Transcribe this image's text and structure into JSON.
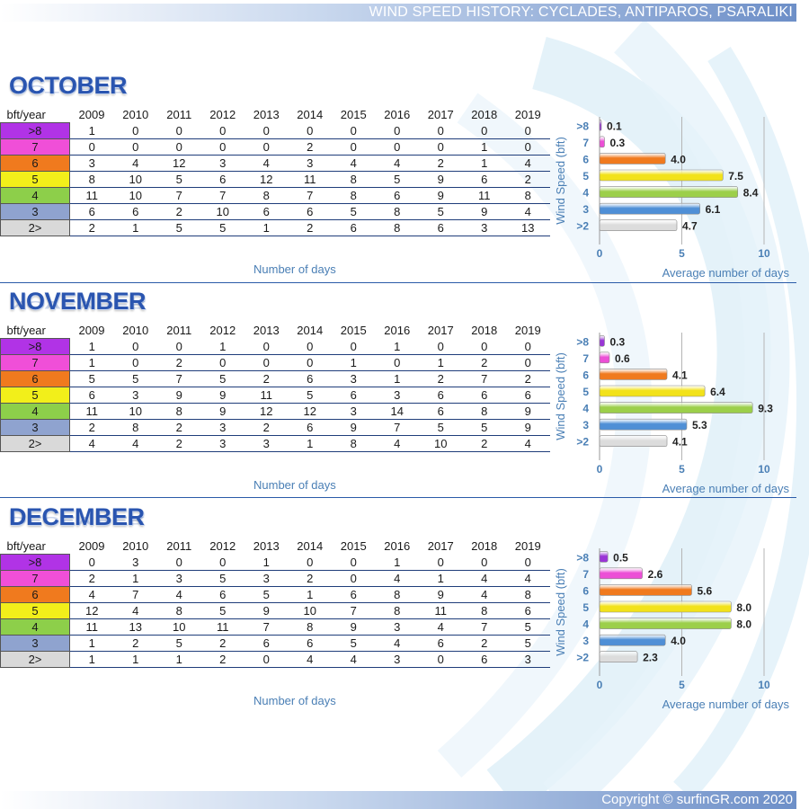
{
  "header": {
    "title": "WIND SPEED HISTORY: CYCLADES, ANTIPAROS, PSARALIKI"
  },
  "footer": {
    "copyright": "Copyright © surfinGR.com 2020"
  },
  "table_header": {
    "first": "bft/year",
    "years": [
      "2009",
      "2010",
      "2011",
      "2012",
      "2013",
      "2014",
      "2015",
      "2016",
      "2017",
      "2018",
      "2019"
    ]
  },
  "row_colors": [
    "#b133e6",
    "#f04fd8",
    "#f07a1e",
    "#f2ef1a",
    "#8dcf4a",
    "#8fa3cf",
    "#d9d9d9"
  ],
  "bar_colors": [
    "#9a35d6",
    "#ec4fd6",
    "#f07a1e",
    "#f2e21a",
    "#9ccf4a",
    "#4f8fd6",
    "#dcdcdc"
  ],
  "axis_notes": {
    "table": "Number of days"
  },
  "sections": [
    {
      "month": "OCTOBER",
      "rows": [
        {
          "label": ">8",
          "values": [
            "1",
            "0",
            "0",
            "0",
            "0",
            "0",
            "0",
            "0",
            "0",
            "0",
            "0"
          ]
        },
        {
          "label": "7",
          "values": [
            "0",
            "0",
            "0",
            "0",
            "0",
            "2",
            "0",
            "0",
            "0",
            "1",
            "0"
          ]
        },
        {
          "label": "6",
          "values": [
            "3",
            "4",
            "12",
            "3",
            "4",
            "3",
            "4",
            "4",
            "2",
            "1",
            "4"
          ]
        },
        {
          "label": "5",
          "values": [
            "8",
            "10",
            "5",
            "6",
            "12",
            "11",
            "8",
            "5",
            "9",
            "6",
            "2"
          ]
        },
        {
          "label": "4",
          "values": [
            "11",
            "10",
            "7",
            "7",
            "8",
            "7",
            "8",
            "6",
            "9",
            "11",
            "8"
          ]
        },
        {
          "label": "3",
          "values": [
            "6",
            "6",
            "2",
            "10",
            "6",
            "6",
            "5",
            "8",
            "5",
            "9",
            "4"
          ]
        },
        {
          "label": "2>",
          "values": [
            "2",
            "1",
            "5",
            "5",
            "1",
            "2",
            "6",
            "8",
            "6",
            "3",
            "13"
          ]
        }
      ]
    },
    {
      "month": "NOVEMBER",
      "rows": [
        {
          "label": ">8",
          "values": [
            "1",
            "0",
            "0",
            "1",
            "0",
            "0",
            "0",
            "1",
            "0",
            "0",
            "0"
          ]
        },
        {
          "label": "7",
          "values": [
            "1",
            "0",
            "2",
            "0",
            "0",
            "0",
            "1",
            "0",
            "1",
            "2",
            "0"
          ]
        },
        {
          "label": "6",
          "values": [
            "5",
            "5",
            "7",
            "5",
            "2",
            "6",
            "3",
            "1",
            "2",
            "7",
            "2"
          ]
        },
        {
          "label": "5",
          "values": [
            "6",
            "3",
            "9",
            "9",
            "11",
            "5",
            "6",
            "3",
            "6",
            "6",
            "6"
          ]
        },
        {
          "label": "4",
          "values": [
            "11",
            "10",
            "8",
            "9",
            "12",
            "12",
            "3",
            "14",
            "6",
            "8",
            "9"
          ]
        },
        {
          "label": "3",
          "values": [
            "2",
            "8",
            "2",
            "3",
            "2",
            "6",
            "9",
            "7",
            "5",
            "5",
            "9"
          ]
        },
        {
          "label": "2>",
          "values": [
            "4",
            "4",
            "2",
            "3",
            "3",
            "1",
            "8",
            "4",
            "10",
            "2",
            "4"
          ]
        }
      ]
    },
    {
      "month": "DECEMBER",
      "rows": [
        {
          "label": ">8",
          "values": [
            "0",
            "3",
            "0",
            "0",
            "1",
            "0",
            "0",
            "1",
            "0",
            "0",
            "0"
          ]
        },
        {
          "label": "7",
          "values": [
            "2",
            "1",
            "3",
            "5",
            "3",
            "2",
            "0",
            "4",
            "1",
            "4",
            "4"
          ]
        },
        {
          "label": "6",
          "values": [
            "4",
            "7",
            "4",
            "6",
            "5",
            "1",
            "6",
            "8",
            "9",
            "4",
            "8"
          ]
        },
        {
          "label": "5",
          "values": [
            "12",
            "4",
            "8",
            "5",
            "9",
            "10",
            "7",
            "8",
            "11",
            "8",
            "6"
          ]
        },
        {
          "label": "4",
          "values": [
            "11",
            "13",
            "10",
            "11",
            "7",
            "8",
            "9",
            "3",
            "4",
            "7",
            "5"
          ]
        },
        {
          "label": "3",
          "values": [
            "1",
            "2",
            "5",
            "2",
            "6",
            "6",
            "5",
            "4",
            "6",
            "2",
            "5"
          ]
        },
        {
          "label": "2>",
          "values": [
            "1",
            "1",
            "1",
            "2",
            "0",
            "4",
            "4",
            "3",
            "0",
            "6",
            "3"
          ]
        }
      ]
    }
  ],
  "chart_data": [
    {
      "type": "bar",
      "orientation": "horizontal",
      "categories": [
        ">8",
        "7",
        "6",
        "5",
        "4",
        "3",
        ">2"
      ],
      "values": [
        0.1,
        0.3,
        4.0,
        7.5,
        8.4,
        6.1,
        4.7
      ],
      "data_labels": [
        "0.1",
        "0.3",
        "4.0",
        "7.5",
        "8.4",
        "6.1",
        "4.7"
      ],
      "title": "",
      "xlabel": "Average number of days",
      "ylabel": "Wind Speed (bft)",
      "xticks": [
        "0",
        "5",
        "10"
      ],
      "xlim": [
        0,
        10
      ],
      "grid": false
    },
    {
      "type": "bar",
      "orientation": "horizontal",
      "categories": [
        ">8",
        "7",
        "6",
        "5",
        "4",
        "3",
        ">2"
      ],
      "values": [
        0.3,
        0.6,
        4.1,
        6.4,
        9.3,
        5.3,
        4.1
      ],
      "data_labels": [
        "0.3",
        "0.6",
        "4.1",
        "6.4",
        "9.3",
        "5.3",
        "4.1"
      ],
      "title": "",
      "xlabel": "Average number of days",
      "ylabel": "Wind Speed (bft)",
      "xticks": [
        "0",
        "5",
        "10"
      ],
      "xlim": [
        0,
        10
      ],
      "grid": false
    },
    {
      "type": "bar",
      "orientation": "horizontal",
      "categories": [
        ">8",
        "7",
        "6",
        "5",
        "4",
        "3",
        ">2"
      ],
      "values": [
        0.5,
        2.6,
        5.6,
        8.0,
        8.0,
        4.0,
        2.3
      ],
      "data_labels": [
        "0.5",
        "2.6",
        "5.6",
        "8.0",
        "8.0",
        "4.0",
        "2.3"
      ],
      "title": "",
      "xlabel": "Average number of days",
      "ylabel": "Wind Speed (bft)",
      "xticks": [
        "0",
        "5",
        "10"
      ],
      "xlim": [
        0,
        10
      ],
      "grid": false
    }
  ]
}
